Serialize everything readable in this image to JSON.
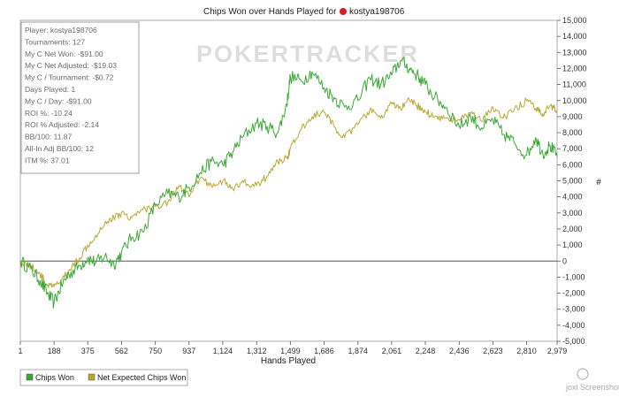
{
  "chart_data": {
    "type": "line",
    "title_prefix": "Chips Won over Hands Played for",
    "player_name": "kostya198706",
    "xlabel": "Hands Played",
    "ylabel": "#",
    "xlim": [
      1,
      2979
    ],
    "ylim": [
      -5000,
      15000
    ],
    "x_ticks": [
      1,
      188,
      375,
      562,
      750,
      937,
      1124,
      1312,
      1499,
      1686,
      1874,
      2061,
      2248,
      2436,
      2623,
      2810,
      2979
    ],
    "x_tick_labels": [
      "1",
      "188",
      "375",
      "562",
      "750",
      "937",
      "1,124",
      "1,312",
      "1,499",
      "1,686",
      "1,874",
      "2,061",
      "2,248",
      "2,436",
      "2,623",
      "2,810",
      "2,979"
    ],
    "y_ticks": [
      15000,
      14000,
      13000,
      12000,
      11000,
      10000,
      9000,
      8000,
      7000,
      6000,
      5000,
      4000,
      3000,
      2000,
      1000,
      0,
      -1000,
      -2000,
      -3000,
      -4000,
      -5000
    ],
    "y_tick_labels": [
      "15,000",
      "14,000",
      "13,000",
      "12,000",
      "11,000",
      "10,000",
      "9,000",
      "8,000",
      "7,000",
      "6,000",
      "5,000",
      "4,000",
      "3,000",
      "2,000",
      "1,000",
      "0",
      "-1,000",
      "-2,000",
      "-3,000",
      "-4,000",
      "-5,000"
    ],
    "series": [
      {
        "name": "Chips Won",
        "color": "#3aa834",
        "x": [
          1,
          60,
          110,
          150,
          188,
          230,
          270,
          330,
          375,
          420,
          470,
          520,
          562,
          620,
          680,
          750,
          820,
          880,
          937,
          1000,
          1060,
          1124,
          1180,
          1240,
          1312,
          1370,
          1430,
          1480,
          1499,
          1560,
          1620,
          1686,
          1740,
          1800,
          1874,
          1940,
          2000,
          2061,
          2110,
          2160,
          2200,
          2248,
          2300,
          2360,
          2436,
          2500,
          2560,
          2623,
          2680,
          2740,
          2810,
          2860,
          2900,
          2940,
          2979
        ],
        "values": [
          0,
          -500,
          -1200,
          -2000,
          -2600,
          -1500,
          -800,
          -300,
          200,
          -100,
          300,
          -200,
          500,
          1500,
          1800,
          3500,
          4200,
          4000,
          4600,
          5500,
          6200,
          6000,
          6800,
          7800,
          8600,
          8400,
          8000,
          9800,
          11500,
          11200,
          11800,
          10800,
          10200,
          9600,
          10000,
          11400,
          11000,
          11600,
          12500,
          12000,
          11600,
          11000,
          10200,
          9600,
          8400,
          9000,
          8300,
          8800,
          7900,
          7400,
          6600,
          7700,
          6700,
          7200,
          6500
        ]
      },
      {
        "name": "Net Expected Chips Won",
        "color": "#b8a832",
        "x": [
          1,
          60,
          110,
          150,
          188,
          230,
          270,
          330,
          375,
          420,
          470,
          520,
          562,
          620,
          680,
          750,
          820,
          880,
          937,
          1000,
          1060,
          1124,
          1180,
          1240,
          1312,
          1370,
          1430,
          1480,
          1499,
          1560,
          1620,
          1686,
          1740,
          1800,
          1874,
          1940,
          2000,
          2061,
          2110,
          2160,
          2200,
          2248,
          2300,
          2360,
          2436,
          2500,
          2560,
          2623,
          2680,
          2740,
          2810,
          2860,
          2900,
          2940,
          2979
        ],
        "values": [
          0,
          -300,
          -800,
          -1500,
          -1600,
          -1200,
          -600,
          200,
          1000,
          1600,
          2400,
          2700,
          3000,
          2700,
          3200,
          3400,
          3700,
          4700,
          4000,
          5200,
          4700,
          5000,
          4500,
          4900,
          4700,
          5300,
          6200,
          6400,
          7000,
          8200,
          9000,
          9300,
          8400,
          7700,
          8500,
          9400,
          8900,
          9800,
          9500,
          10000,
          9700,
          9300,
          9000,
          8900,
          8800,
          9200,
          8700,
          9600,
          8900,
          9400,
          10000,
          9500,
          9200,
          9700,
          9400
        ]
      }
    ]
  },
  "stats": [
    "Player: kostya198706",
    "Tournaments: 127",
    "My C Net Won: -$91.00",
    "My C Net Adjusted: -$19.03",
    "My C / Tournament: -$0.72",
    "Days Played: 1",
    "My C / Day: -$91.00",
    "ROI %: -10.24",
    "ROI % Adjusted: -2.14",
    "BB/100: 11.87",
    "All-In Adj BB/100: 12",
    "ITM %: 37.01"
  ],
  "watermark": "POKERTRACKER",
  "screenshot_mark": "joxi Screenshot",
  "colors": {
    "chips_won": "#3aa834",
    "expected": "#b8a832",
    "axis": "#555555",
    "zero_line": "#555555",
    "red_icon": "#d81f1f"
  }
}
